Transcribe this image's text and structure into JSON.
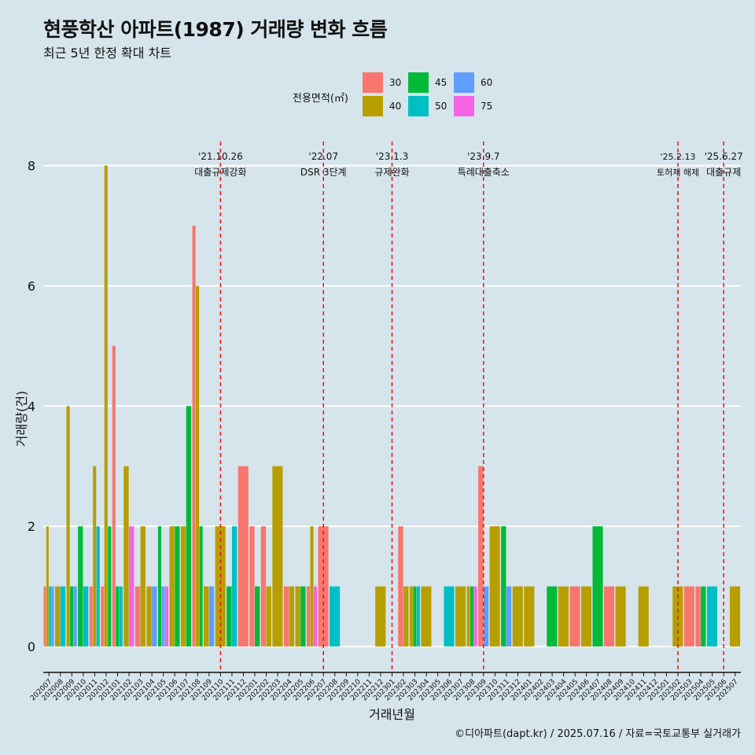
{
  "title": "현풍학산 아파트(1987) 거래량 변화 흐름",
  "subtitle": "최근 5년 한정 확대 차트",
  "caption": "©디아파트(dapt.kr) / 2025.07.16 / 자료=국토교통부 실거래가",
  "legend": {
    "title": "전용면적(㎡)",
    "items": [
      {
        "label": "30",
        "color": "#F8766D"
      },
      {
        "label": "40",
        "color": "#B79F00"
      },
      {
        "label": "45",
        "color": "#00BA38"
      },
      {
        "label": "50",
        "color": "#00BFC4"
      },
      {
        "label": "60",
        "color": "#619CFF"
      },
      {
        "label": "75",
        "color": "#F564E3"
      }
    ]
  },
  "chart_data": {
    "type": "bar",
    "xlabel": "거래년월",
    "ylabel": "거래량(건)",
    "ylim": [
      0,
      8.4
    ],
    "yticks": [
      0,
      2,
      4,
      6,
      8
    ],
    "grid": true,
    "legend_position": "top",
    "categories": [
      "202007",
      "202008",
      "202009",
      "202010",
      "202011",
      "202012",
      "202101",
      "202102",
      "202103",
      "202104",
      "202105",
      "202106",
      "202107",
      "202108",
      "202109",
      "202110",
      "202111",
      "202112",
      "202201",
      "202202",
      "202203",
      "202204",
      "202205",
      "202206",
      "202207",
      "202208",
      "202209",
      "202210",
      "202211",
      "202212",
      "202301",
      "202302",
      "202303",
      "202304",
      "202305",
      "202306",
      "202307",
      "202308",
      "202309",
      "202310",
      "202311",
      "202312",
      "202401",
      "202402",
      "202403",
      "202404",
      "202405",
      "202406",
      "202407",
      "202408",
      "202409",
      "202410",
      "202411",
      "202412",
      "202501",
      "202502",
      "202503",
      "202504",
      "202505",
      "202506",
      "202507"
    ],
    "series": [
      {
        "name": "30",
        "values": [
          1,
          0,
          0,
          0,
          1,
          1,
          5,
          0,
          1,
          0,
          0,
          0,
          0,
          7,
          0,
          0,
          0,
          3,
          2,
          2,
          0,
          1,
          0,
          1,
          2,
          0,
          0,
          0,
          0,
          0,
          0,
          2,
          0,
          0,
          0,
          0,
          0,
          0,
          3,
          0,
          0,
          0,
          0,
          0,
          0,
          0,
          1,
          0,
          0,
          1,
          0,
          0,
          0,
          0,
          0,
          0,
          1,
          1,
          0,
          0,
          0
        ]
      },
      {
        "name": "40",
        "values": [
          2,
          1,
          4,
          0,
          3,
          8,
          0,
          3,
          2,
          1,
          0,
          2,
          2,
          6,
          1,
          2,
          0,
          0,
          0,
          1,
          3,
          1,
          1,
          2,
          0,
          0,
          0,
          0,
          0,
          1,
          0,
          1,
          1,
          1,
          0,
          0,
          1,
          1,
          0,
          2,
          0,
          1,
          1,
          0,
          0,
          1,
          0,
          1,
          0,
          0,
          1,
          0,
          1,
          0,
          0,
          1,
          0,
          0,
          0,
          0,
          1
        ]
      },
      {
        "name": "45",
        "values": [
          0,
          0,
          1,
          2,
          0,
          2,
          1,
          0,
          0,
          0,
          2,
          2,
          4,
          2,
          0,
          0,
          1,
          0,
          1,
          0,
          0,
          0,
          1,
          0,
          0,
          0,
          0,
          0,
          0,
          0,
          0,
          0,
          1,
          0,
          0,
          0,
          0,
          1,
          0,
          0,
          2,
          0,
          0,
          0,
          1,
          0,
          0,
          0,
          2,
          0,
          0,
          0,
          0,
          0,
          0,
          0,
          0,
          1,
          0,
          0,
          0
        ]
      },
      {
        "name": "50",
        "values": [
          1,
          1,
          0,
          1,
          2,
          0,
          1,
          0,
          0,
          0,
          0,
          0,
          0,
          0,
          0,
          0,
          2,
          0,
          0,
          0,
          0,
          0,
          0,
          0,
          0,
          1,
          0,
          0,
          0,
          0,
          0,
          0,
          1,
          0,
          0,
          1,
          0,
          0,
          0,
          0,
          0,
          0,
          0,
          0,
          0,
          0,
          0,
          0,
          0,
          0,
          0,
          0,
          0,
          0,
          0,
          0,
          0,
          0,
          1,
          0,
          0
        ]
      },
      {
        "name": "60",
        "values": [
          1,
          0,
          1,
          0,
          0,
          0,
          0,
          0,
          0,
          1,
          1,
          0,
          0,
          0,
          1,
          0,
          0,
          0,
          0,
          0,
          0,
          0,
          0,
          0,
          0,
          0,
          0,
          0,
          0,
          0,
          0,
          0,
          0,
          0,
          0,
          0,
          0,
          0,
          1,
          0,
          1,
          0,
          0,
          0,
          0,
          0,
          0,
          0,
          0,
          0,
          0,
          0,
          0,
          0,
          0,
          0,
          0,
          0,
          0,
          0,
          0
        ]
      },
      {
        "name": "75",
        "values": [
          0,
          0,
          0,
          0,
          0,
          0,
          0,
          2,
          0,
          0,
          1,
          0,
          0,
          0,
          0,
          0,
          0,
          0,
          0,
          0,
          0,
          0,
          0,
          1,
          0,
          0,
          0,
          0,
          0,
          0,
          0,
          0,
          0,
          0,
          0,
          0,
          0,
          1,
          0,
          0,
          0,
          0,
          0,
          0,
          0,
          0,
          0,
          0,
          0,
          0,
          0,
          0,
          0,
          0,
          0,
          0,
          0,
          0,
          0,
          0,
          0
        ]
      }
    ],
    "annotations": [
      {
        "x": "202110",
        "date": "'21.10.26",
        "label": "대출규제강화"
      },
      {
        "x": "202207",
        "date": "'22.07",
        "label": "DSR 3단계"
      },
      {
        "x": "202301",
        "date": "'23.1.3",
        "label": "규제완화"
      },
      {
        "x": "202309",
        "date": "'23.9.7",
        "label": "특례대출축소"
      },
      {
        "x": "202502",
        "date": "'25.2.13",
        "label": "토허제 해제"
      },
      {
        "x": "202506",
        "date": "'25.6.27",
        "label": "대출규제"
      }
    ]
  }
}
